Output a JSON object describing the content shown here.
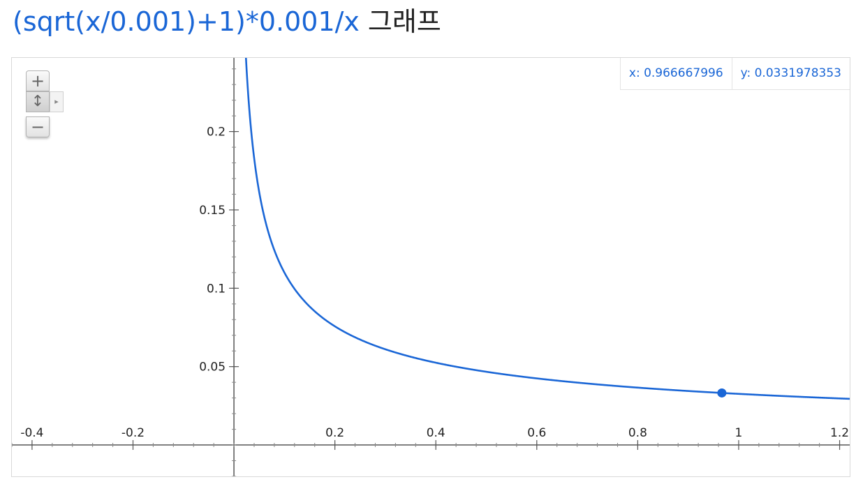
{
  "title": {
    "formula": "(sqrt(x/0.001)+1)*0.001/x",
    "suffix": "그래프"
  },
  "coords": {
    "x_label": "x: 0.966667996",
    "y_label": "y: 0.0331978353"
  },
  "zoom": {
    "in_label": "+",
    "pan_label": "↕",
    "out_label": "−",
    "expand_label": "▸"
  },
  "colors": {
    "curve": "#1a66d6",
    "axis": "#555555",
    "title": "#1a66d6"
  },
  "chart_data": {
    "type": "line",
    "function": "(sqrt(x/0.001)+1)*0.001/x",
    "xlim": [
      -0.44,
      1.22
    ],
    "ylim": [
      -0.02,
      0.247
    ],
    "x_ticks": [
      -0.4,
      -0.2,
      0.2,
      0.4,
      0.6,
      0.8,
      1,
      1.2
    ],
    "x_tick_labels": [
      "-0.4",
      "-0.2",
      "0.2",
      "0.4",
      "0.6",
      "0.8",
      "1",
      "1.2"
    ],
    "y_ticks": [
      0.05,
      0.1,
      0.15,
      0.2
    ],
    "y_tick_labels": [
      "0.05",
      "0.1",
      "0.15",
      "0.2"
    ],
    "highlight_point": {
      "x": 0.966667996,
      "y": 0.0331978353
    },
    "grid": false
  }
}
